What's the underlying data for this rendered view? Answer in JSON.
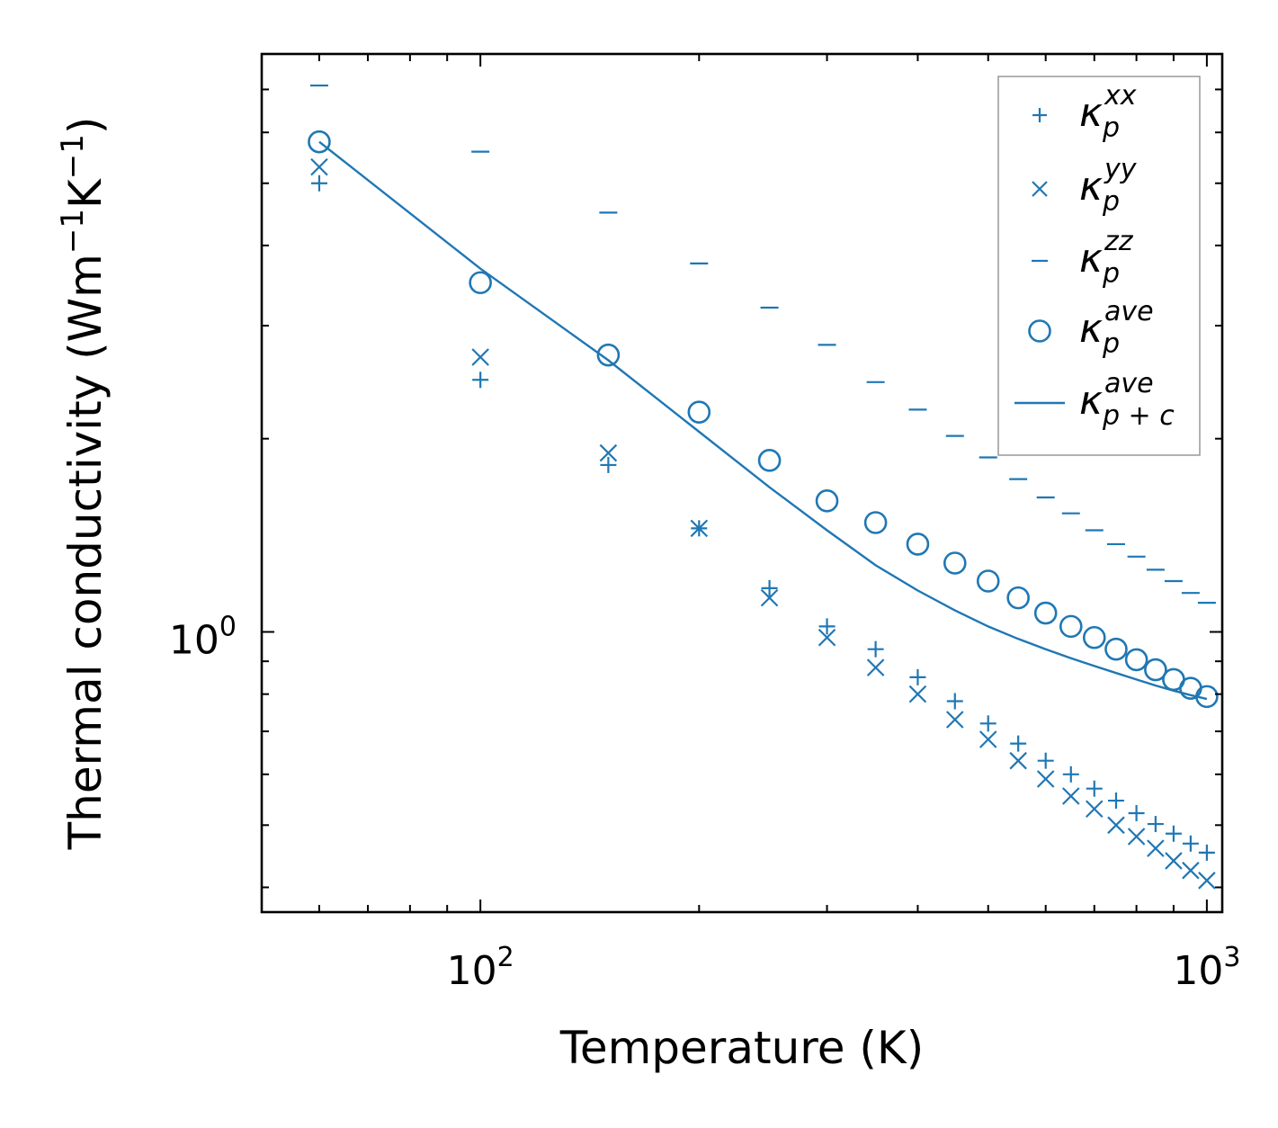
{
  "chart_data": {
    "type": "scatter",
    "x_scale": "log",
    "y_scale": "log",
    "xlabel": "Temperature (K)",
    "ylabel": "Thermal conductivity (Wm",
    "ylabel_unit1": "−1",
    "ylabel_mid": "K",
    "ylabel_unit2": "−1",
    "ylabel_end": ")",
    "xlim": [
      50,
      1050
    ],
    "ylim": [
      0.366,
      7.95
    ],
    "x_major_ticks": [
      {
        "value": 100,
        "base": "10",
        "exp": "2"
      },
      {
        "value": 1000,
        "base": "10",
        "exp": "3"
      }
    ],
    "y_major_ticks": [
      {
        "value": 1,
        "base": "10",
        "exp": "0"
      }
    ],
    "x_minor_ticks": [
      60,
      70,
      80,
      90,
      200,
      300,
      400,
      500,
      600,
      700,
      800,
      900
    ],
    "y_minor_ticks": [
      0.4,
      0.5,
      0.6,
      0.7,
      0.8,
      0.9,
      2,
      3,
      4,
      5,
      6,
      7
    ],
    "color": "#1f77b4",
    "x": [
      60,
      100,
      150,
      200,
      250,
      300,
      350,
      400,
      450,
      500,
      550,
      600,
      650,
      700,
      750,
      800,
      850,
      900,
      950,
      1000
    ],
    "series": [
      {
        "name": "xx",
        "marker": "plus",
        "values": [
          5.0,
          2.47,
          1.82,
          1.45,
          1.17,
          1.02,
          0.94,
          0.85,
          0.78,
          0.72,
          0.67,
          0.63,
          0.6,
          0.57,
          0.546,
          0.522,
          0.502,
          0.485,
          0.468,
          0.453
        ]
      },
      {
        "name": "yy",
        "marker": "x",
        "values": [
          5.3,
          2.68,
          1.9,
          1.45,
          1.13,
          0.98,
          0.88,
          0.8,
          0.73,
          0.68,
          0.63,
          0.59,
          0.555,
          0.53,
          0.5,
          0.48,
          0.46,
          0.44,
          0.425,
          0.41
        ]
      },
      {
        "name": "zz",
        "marker": "hline",
        "values": [
          7.1,
          5.6,
          4.5,
          3.75,
          3.2,
          2.8,
          2.45,
          2.22,
          2.02,
          1.87,
          1.73,
          1.62,
          1.53,
          1.44,
          1.37,
          1.31,
          1.25,
          1.2,
          1.15,
          1.11
        ]
      },
      {
        "name": "ave",
        "marker": "circle",
        "values": [
          5.8,
          3.5,
          2.7,
          2.2,
          1.85,
          1.6,
          1.48,
          1.37,
          1.28,
          1.2,
          1.13,
          1.07,
          1.02,
          0.98,
          0.94,
          0.905,
          0.873,
          0.843,
          0.817,
          0.793
        ]
      },
      {
        "name": "ave_pc",
        "marker": "line",
        "values": [
          5.8,
          3.68,
          2.65,
          2.05,
          1.68,
          1.44,
          1.27,
          1.16,
          1.08,
          1.02,
          0.975,
          0.94,
          0.91,
          0.885,
          0.863,
          0.843,
          0.825,
          0.81,
          0.797,
          0.786
        ]
      }
    ],
    "legend": {
      "location": "top-right",
      "entries": [
        {
          "symbol": "κ",
          "sub": "p",
          "sup": "xx"
        },
        {
          "symbol": "κ",
          "sub": "p",
          "sup": "yy"
        },
        {
          "symbol": "κ",
          "sub": "p",
          "sup": "zz"
        },
        {
          "symbol": "κ",
          "sub": "p",
          "sup": "ave"
        },
        {
          "symbol": "κ",
          "sub": "p + c",
          "sup": "ave"
        }
      ]
    }
  }
}
